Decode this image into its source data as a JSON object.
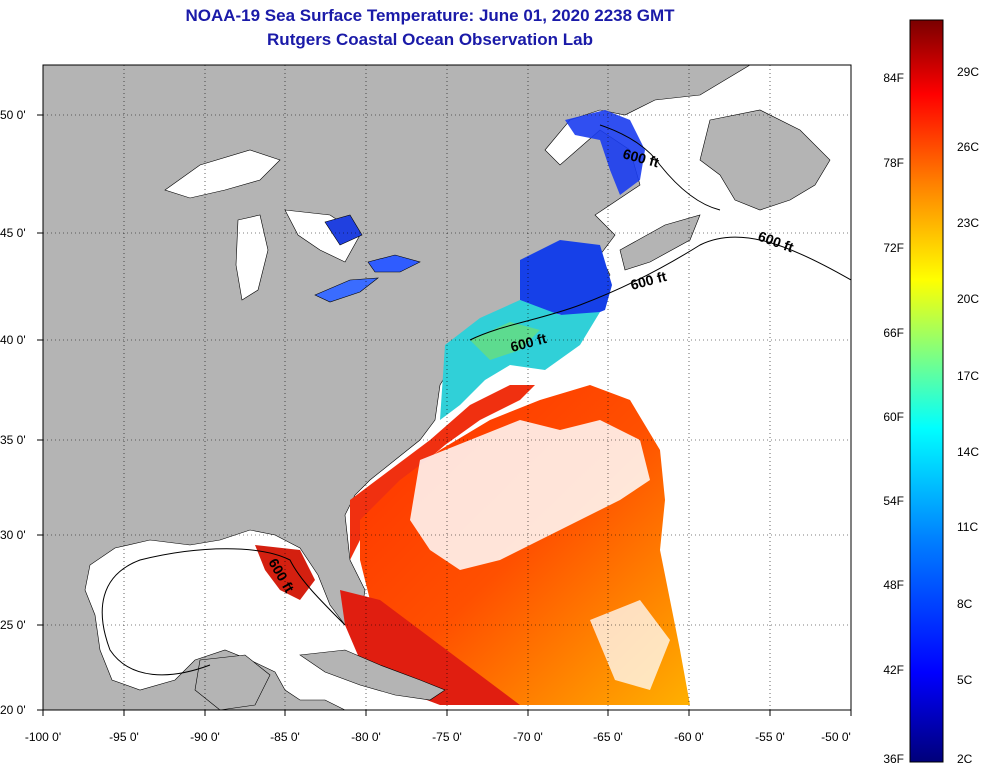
{
  "title": "NOAA-19 Sea Surface Temperature:  June 01, 2020 2238 GMT",
  "subtitle": "Rutgers Coastal Ocean Observation Lab",
  "map": {
    "x_ticks": [
      "-100 0'",
      "-95 0'",
      "-90 0'",
      "-85 0'",
      "-80 0'",
      "-75 0'",
      "-70 0'",
      "-65 0'",
      "-60 0'",
      "-55 0'",
      "-50 0'"
    ],
    "y_ticks": [
      "50 0'",
      "45 0'",
      "40 0'",
      "35 0'",
      "30 0'",
      "25 0'",
      "20 0'"
    ],
    "contour_labels": [
      "600 ft",
      "600 ft",
      "600 ft",
      "600 ft",
      "600 ft"
    ],
    "land_color": "#b4b4b4",
    "ocean_color": "#ffffff"
  },
  "colorbar": {
    "fahrenheit_labels": [
      "84F",
      "78F",
      "72F",
      "66F",
      "60F",
      "54F",
      "48F",
      "42F",
      "36F"
    ],
    "celsius_labels": [
      "29C",
      "26C",
      "23C",
      "20C",
      "17C",
      "14C",
      "11C",
      "8C",
      "5C",
      "2C"
    ]
  }
}
